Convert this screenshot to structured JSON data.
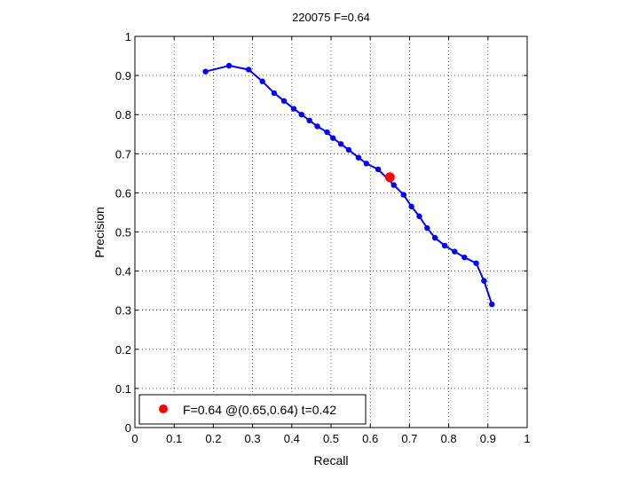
{
  "chart_data": {
    "type": "line",
    "title": "220075 F=0.64",
    "xlabel": "Recall",
    "ylabel": "Precision",
    "xlim": [
      0,
      1
    ],
    "ylim": [
      0,
      1
    ],
    "grid": true,
    "grid_style": "dotted",
    "legend_position": "bottom-left",
    "xticks": [
      "0",
      "0.1",
      "0.2",
      "0.3",
      "0.4",
      "0.5",
      "0.6",
      "0.7",
      "0.8",
      "0.9",
      "1"
    ],
    "yticks": [
      "0",
      "0.1",
      "0.2",
      "0.3",
      "0.4",
      "0.5",
      "0.6",
      "0.7",
      "0.8",
      "0.9",
      "1"
    ],
    "series": [
      {
        "color": "#0000ff",
        "marker": "dot",
        "x": [
          0.18,
          0.24,
          0.29,
          0.325,
          0.355,
          0.38,
          0.405,
          0.425,
          0.445,
          0.465,
          0.49,
          0.505,
          0.525,
          0.545,
          0.57,
          0.59,
          0.62,
          0.66,
          0.685,
          0.705,
          0.725,
          0.745,
          0.765,
          0.79,
          0.815,
          0.84,
          0.87,
          0.89,
          0.91
        ],
        "y": [
          0.91,
          0.925,
          0.915,
          0.885,
          0.855,
          0.835,
          0.815,
          0.8,
          0.785,
          0.77,
          0.755,
          0.74,
          0.725,
          0.71,
          0.69,
          0.675,
          0.66,
          0.62,
          0.595,
          0.565,
          0.54,
          0.51,
          0.485,
          0.465,
          0.45,
          0.435,
          0.42,
          0.375,
          0.315
        ]
      }
    ],
    "best_point": {
      "x": 0.65,
      "y": 0.64,
      "color": "#ff0000"
    },
    "legend": {
      "label": "F=0.64 @(0.65,0.64) t=0.42",
      "color": "#ff0000"
    }
  }
}
